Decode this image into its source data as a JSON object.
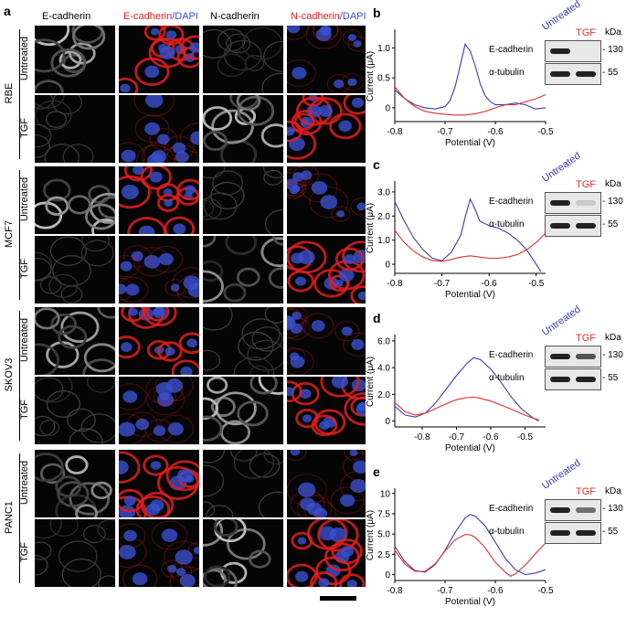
{
  "panel_a": {
    "letter": "a",
    "headers": {
      "ecad_gray": "E-cadherin",
      "ecad_red": "E-cadherin",
      "ecad_dapi": "/DAPI",
      "ncad_gray": "N-cadherin",
      "ncad_red": "N-cadherin",
      "ncad_dapi": "/DAPI"
    },
    "cell_lines": [
      "RBE",
      "MCF7",
      "SKOV3",
      "PANC1"
    ],
    "conditions": [
      "Untreated",
      "TGF"
    ]
  },
  "colors": {
    "untreated": "#3b3bb3",
    "tgf": "#e23030",
    "dapi": "#3a4fcf",
    "cadherin_red": "#e01e1e"
  },
  "blot_common": {
    "kda": "kDa",
    "ecad_label": "E-cadherin",
    "tub_label": "α-tubulin",
    "marker_ecad": "- 130",
    "marker_tub": "- 55",
    "lane_untreated": "Untreated",
    "lane_tgf": "TGF",
    "ylabel": "Current (μA)",
    "xlabel": "Potential (V)"
  },
  "letters": {
    "b": "b",
    "c": "c",
    "d": "d",
    "e": "e"
  },
  "chart_data": [
    {
      "panel": "b",
      "type": "line",
      "xlabel": "Potential (V)",
      "ylabel": "Current (μA)",
      "xlim": [
        -0.8,
        -0.5
      ],
      "ylim": [
        -0.2,
        1.25
      ],
      "xticks": [
        -0.8,
        -0.7,
        -0.6,
        -0.5
      ],
      "xtick_labels": [
        "-0.8",
        "-0.7",
        "-0.6",
        "-0.5"
      ],
      "yticks": [
        0,
        0.5,
        1.0
      ],
      "ytick_labels": [
        "0",
        "0.5",
        "1.0"
      ],
      "series": [
        {
          "key": "untreated",
          "x": [
            -0.8,
            -0.78,
            -0.76,
            -0.74,
            -0.72,
            -0.7,
            -0.69,
            -0.68,
            -0.67,
            -0.66,
            -0.65,
            -0.64,
            -0.63,
            -0.62,
            -0.61,
            -0.6,
            -0.58,
            -0.56,
            -0.54,
            -0.52,
            -0.5
          ],
          "y": [
            0.3,
            0.15,
            0.05,
            0.0,
            -0.02,
            0.02,
            0.12,
            0.35,
            0.7,
            1.06,
            0.95,
            0.7,
            0.4,
            0.2,
            0.1,
            0.05,
            0.05,
            0.08,
            0.05,
            -0.02,
            0.0
          ]
        },
        {
          "key": "tgf",
          "x": [
            -0.8,
            -0.78,
            -0.76,
            -0.74,
            -0.72,
            -0.7,
            -0.68,
            -0.66,
            -0.64,
            -0.62,
            -0.6,
            -0.58,
            -0.56,
            -0.54,
            -0.52,
            -0.5
          ],
          "y": [
            0.35,
            0.15,
            0.02,
            -0.06,
            -0.09,
            -0.11,
            -0.12,
            -0.12,
            -0.1,
            -0.06,
            0.0,
            0.05,
            0.05,
            0.1,
            0.15,
            0.22
          ]
        }
      ]
    },
    {
      "panel": "c",
      "type": "line",
      "xlabel": "Potential (V)",
      "ylabel": "Current (μA)",
      "xlim": [
        -0.8,
        -0.48
      ],
      "ylim": [
        -0.3,
        3.3
      ],
      "xticks": [
        -0.8,
        -0.7,
        -0.6,
        -0.5
      ],
      "xtick_labels": [
        "-0.8",
        "-0.7",
        "-0.6",
        "-0.5"
      ],
      "yticks": [
        0,
        1.0,
        2.0,
        3.0
      ],
      "ytick_labels": [
        "0",
        "1.0",
        "2.0",
        "3.0"
      ],
      "series": [
        {
          "key": "untreated",
          "x": [
            -0.8,
            -0.78,
            -0.76,
            -0.74,
            -0.72,
            -0.7,
            -0.68,
            -0.66,
            -0.65,
            -0.64,
            -0.63,
            -0.62,
            -0.6,
            -0.58,
            -0.56,
            -0.54,
            -0.52,
            -0.5,
            -0.49
          ],
          "y": [
            2.6,
            1.8,
            1.1,
            0.6,
            0.25,
            0.15,
            0.5,
            1.2,
            2.0,
            2.7,
            2.3,
            1.8,
            1.6,
            1.5,
            1.3,
            1.0,
            0.6,
            0.0,
            -0.3
          ]
        },
        {
          "key": "tgf",
          "x": [
            -0.8,
            -0.78,
            -0.76,
            -0.74,
            -0.72,
            -0.7,
            -0.68,
            -0.66,
            -0.64,
            -0.62,
            -0.6,
            -0.58,
            -0.56,
            -0.54,
            -0.52,
            -0.5,
            -0.48
          ],
          "y": [
            1.4,
            0.9,
            0.55,
            0.3,
            0.15,
            0.12,
            0.2,
            0.3,
            0.35,
            0.3,
            0.25,
            0.25,
            0.3,
            0.4,
            0.6,
            0.9,
            1.3
          ]
        }
      ]
    },
    {
      "panel": "d",
      "type": "line",
      "xlabel": "Potential (V)",
      "ylabel": "Current (μA)",
      "xlim": [
        -0.88,
        -0.44
      ],
      "ylim": [
        -0.3,
        6.2
      ],
      "xticks": [
        -0.8,
        -0.7,
        -0.6,
        -0.5
      ],
      "xtick_labels": [
        "-0.8",
        "-0.7",
        "-0.6",
        "-0.5"
      ],
      "yticks": [
        0,
        2.0,
        4.0,
        6.0
      ],
      "ytick_labels": [
        "0",
        "2.0",
        "4.0",
        "6.0"
      ],
      "series": [
        {
          "key": "untreated",
          "x": [
            -0.88,
            -0.85,
            -0.82,
            -0.79,
            -0.76,
            -0.73,
            -0.7,
            -0.67,
            -0.65,
            -0.63,
            -0.6,
            -0.57,
            -0.54,
            -0.51,
            -0.48,
            -0.46
          ],
          "y": [
            1.1,
            0.45,
            0.3,
            0.6,
            1.4,
            2.4,
            3.4,
            4.3,
            4.75,
            4.6,
            3.9,
            2.9,
            1.8,
            0.9,
            0.3,
            0.0
          ]
        },
        {
          "key": "tgf",
          "x": [
            -0.88,
            -0.85,
            -0.82,
            -0.79,
            -0.76,
            -0.73,
            -0.7,
            -0.67,
            -0.65,
            -0.63,
            -0.6,
            -0.57,
            -0.54,
            -0.51,
            -0.48,
            -0.46
          ],
          "y": [
            1.4,
            0.7,
            0.45,
            0.6,
            0.95,
            1.3,
            1.6,
            1.75,
            1.8,
            1.7,
            1.5,
            1.2,
            0.9,
            0.55,
            0.25,
            0.1
          ]
        }
      ]
    },
    {
      "panel": "e",
      "type": "line",
      "xlabel": "Potential (V)",
      "ylabel": "Current (μA)",
      "xlim": [
        -0.8,
        -0.5
      ],
      "ylim": [
        -0.5,
        10.2
      ],
      "xticks": [
        -0.8,
        -0.7,
        -0.6,
        -0.5
      ],
      "xtick_labels": [
        "-0.8",
        "-0.7",
        "-0.6",
        "-0.5"
      ],
      "yticks": [
        0,
        2.5,
        5.0,
        7.5,
        10
      ],
      "ytick_labels": [
        "0",
        "2.5",
        "5.0",
        "7.5",
        "10"
      ],
      "series": [
        {
          "key": "untreated",
          "x": [
            -0.8,
            -0.78,
            -0.76,
            -0.74,
            -0.72,
            -0.7,
            -0.68,
            -0.66,
            -0.65,
            -0.64,
            -0.62,
            -0.6,
            -0.58,
            -0.56,
            -0.54,
            -0.52,
            -0.5
          ],
          "y": [
            3.5,
            1.6,
            0.5,
            0.3,
            1.2,
            3.0,
            5.2,
            7.0,
            7.4,
            7.2,
            6.0,
            4.0,
            2.0,
            0.6,
            0.0,
            0.2,
            0.6
          ]
        },
        {
          "key": "tgf",
          "x": [
            -0.8,
            -0.78,
            -0.76,
            -0.74,
            -0.72,
            -0.7,
            -0.68,
            -0.66,
            -0.65,
            -0.64,
            -0.62,
            -0.6,
            -0.58,
            -0.57,
            -0.56,
            -0.54,
            -0.52,
            -0.5
          ],
          "y": [
            3.0,
            1.3,
            0.4,
            0.4,
            1.3,
            2.9,
            4.3,
            4.95,
            4.9,
            4.6,
            3.3,
            1.5,
            0.3,
            -0.2,
            0.1,
            1.2,
            2.6,
            3.9
          ]
        }
      ]
    }
  ]
}
